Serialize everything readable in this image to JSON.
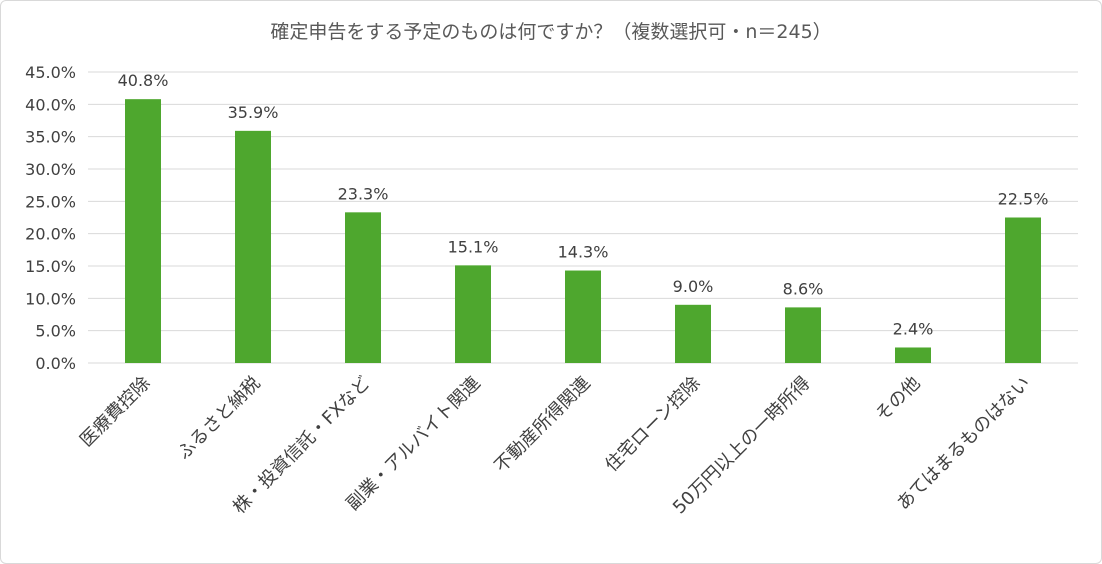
{
  "chart_data": {
    "type": "bar",
    "title": "確定申告をする予定のものは何ですか？（複数選択可・n＝245）",
    "categories": [
      "医療費控除",
      "ふるさと納税",
      "株・投資信託・FXなど",
      "副業・アルバイト関連",
      "不動産所得関連",
      "住宅ローン控除",
      "50万円以上の一時所得",
      "その他",
      "あてはまるものはない"
    ],
    "values": [
      40.8,
      35.9,
      23.3,
      15.1,
      14.3,
      9.0,
      8.6,
      2.4,
      22.5
    ],
    "data_labels": [
      "40.8%",
      "35.9%",
      "23.3%",
      "15.1%",
      "14.3%",
      "9.0%",
      "8.6%",
      "2.4%",
      "22.5%"
    ],
    "y_ticks": [
      "0.0%",
      "5.0%",
      "10.0%",
      "15.0%",
      "20.0%",
      "25.0%",
      "30.0%",
      "35.0%",
      "40.0%",
      "45.0%"
    ],
    "ylim": [
      0,
      45
    ],
    "xlabel": "",
    "ylabel": "",
    "grid": true,
    "legend": "none",
    "bar_color": "#4ea72e",
    "grid_color": "#d9d9d9"
  }
}
